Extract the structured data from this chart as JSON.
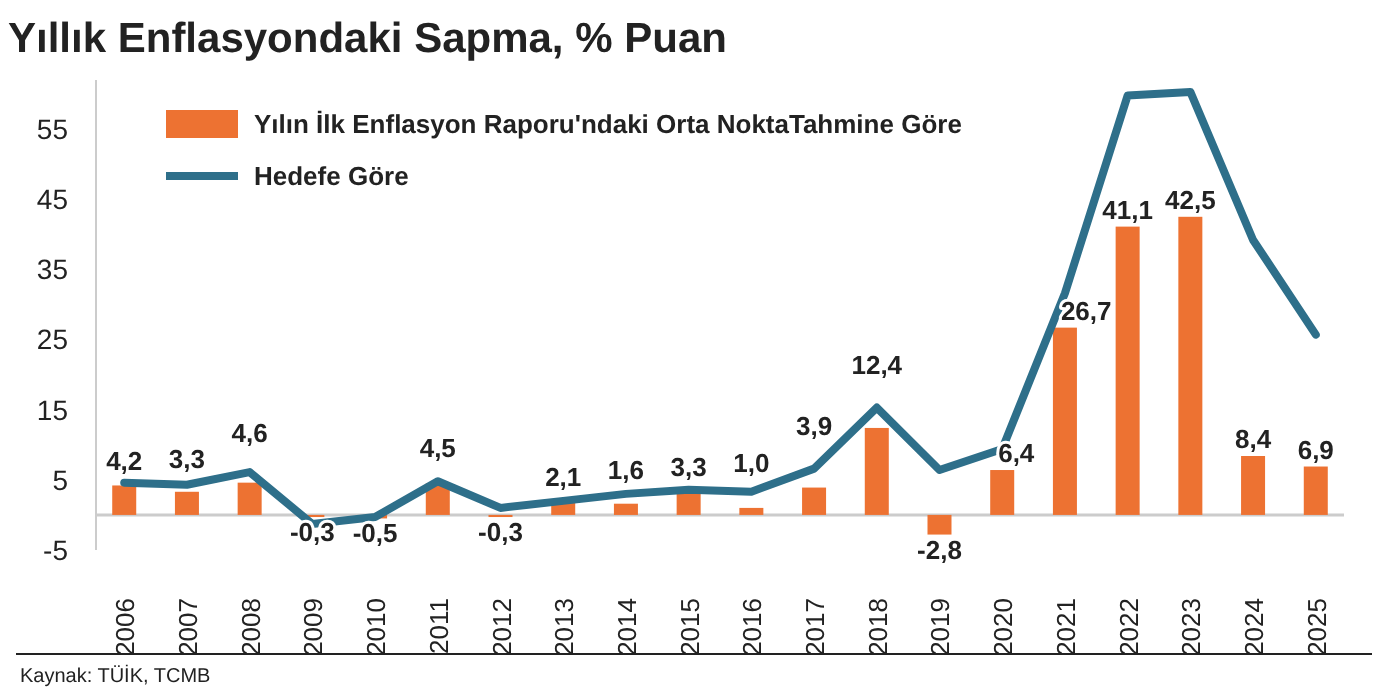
{
  "chart_data": {
    "type": "bar",
    "title": "Yıllık Enflasyondaki Sapma, % Puan",
    "categories": [
      "2006",
      "2007",
      "2008",
      "2009",
      "2010",
      "2011",
      "2012",
      "2013",
      "2014",
      "2015",
      "2016",
      "2017",
      "2018",
      "2019",
      "2020",
      "2021",
      "2022",
      "2023",
      "2024",
      "2025"
    ],
    "series": [
      {
        "name": "Yılın İlk Enflasyon Raporu'ndaki Orta NoktaTahmine Göre",
        "color": "#ed7232",
        "values": [
          4.2,
          3.3,
          4.6,
          -0.3,
          -0.5,
          4.5,
          -0.3,
          2.1,
          1.6,
          3.3,
          1.0,
          3.9,
          12.4,
          -2.8,
          6.4,
          26.7,
          41.1,
          42.5,
          8.4,
          6.9
        ],
        "value_labels": [
          "4,2",
          "3,3",
          "4,6",
          "-0,3",
          "-0,5",
          "4,5",
          "-0,3",
          "2,1",
          "1,6",
          "3,3",
          "1,0",
          "3,9",
          "12,4",
          "-2,8",
          "6,4",
          "26,7",
          "41,1",
          "42,5",
          "8,4",
          "6,9"
        ]
      },
      {
        "name": "Hedefe Göre",
        "type": "line",
        "color": "#2e6f8a",
        "values": [
          4.6,
          4.3,
          6.1,
          -1.3,
          -0.3,
          4.8,
          1.0,
          2.0,
          3.0,
          3.6,
          3.3,
          6.6,
          15.3,
          6.4,
          9.4,
          31.6,
          59.8,
          60.3,
          39.2,
          25.7
        ]
      }
    ],
    "ylim": [
      -5,
      62
    ],
    "yticks": [
      {
        "value": -5,
        "label": "-5"
      },
      5,
      15,
      25,
      35,
      45,
      55
    ],
    "grid": false,
    "legend": "top left",
    "annotations": [
      "Kaynak: TÜİK, TCMB"
    ]
  }
}
